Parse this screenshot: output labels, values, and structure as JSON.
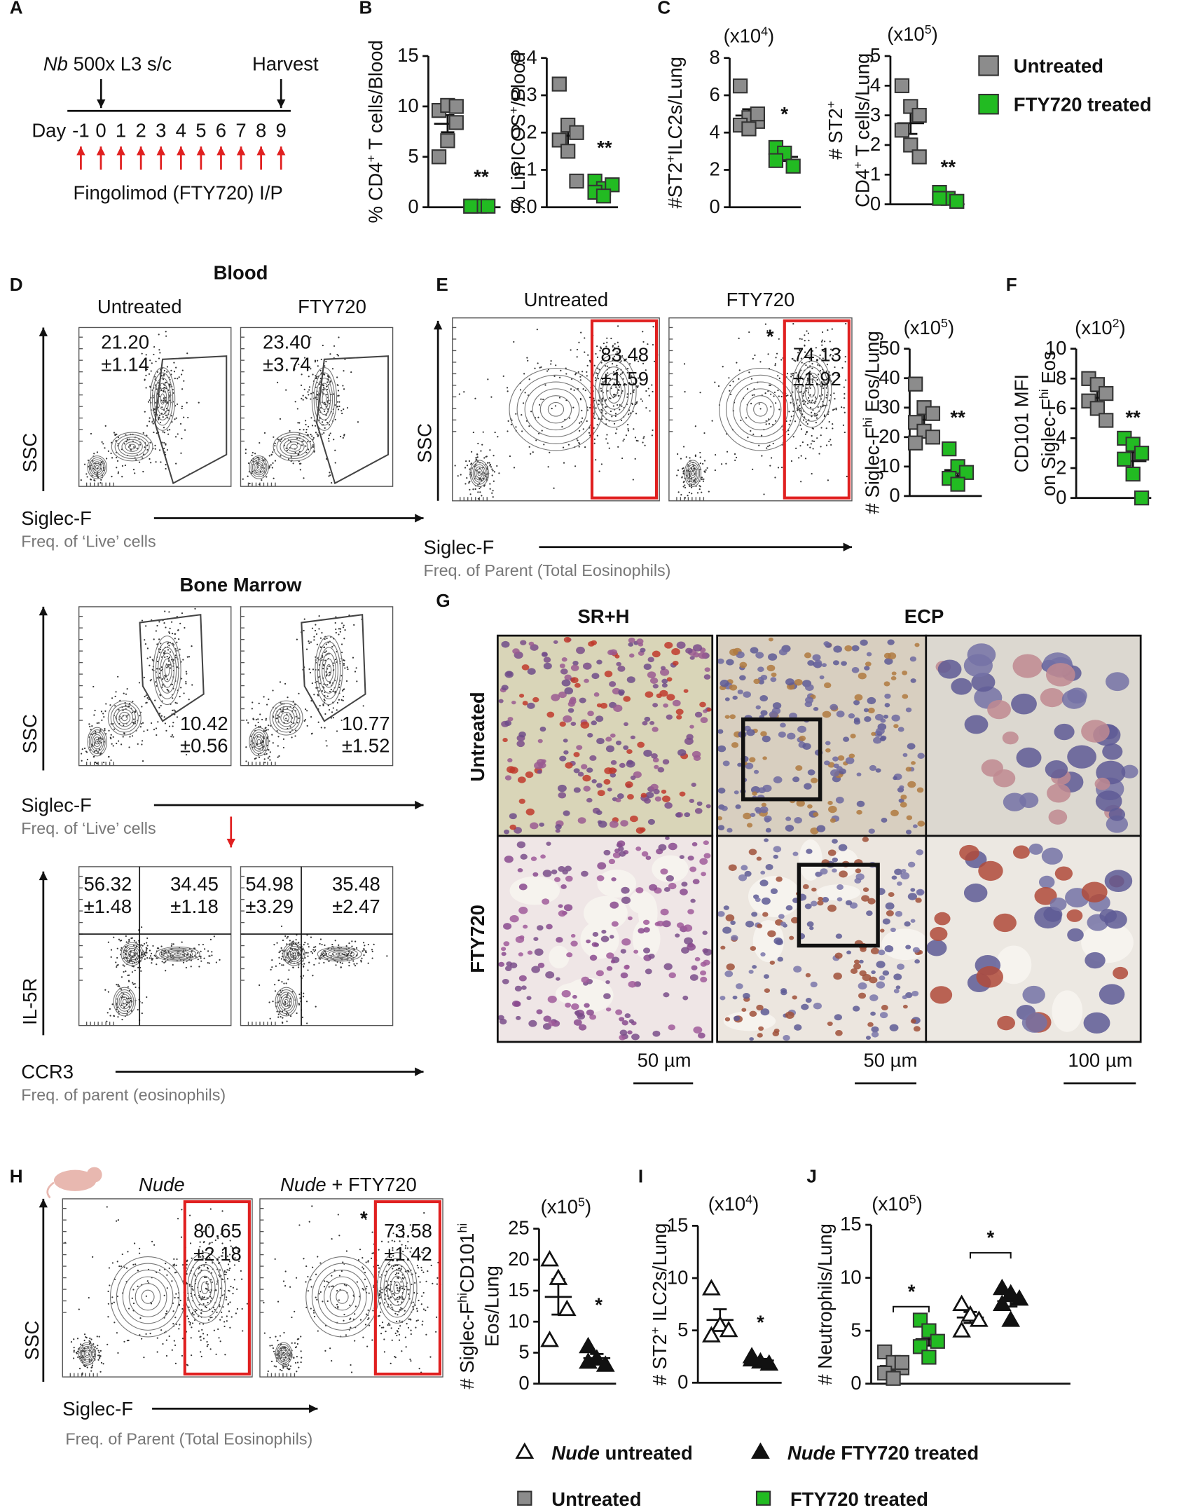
{
  "panel_labels": [
    "A",
    "B",
    "C",
    "D",
    "E",
    "F",
    "G",
    "H",
    "I",
    "J"
  ],
  "panel_a": {
    "organism": "Nb",
    "dose": " 500x L3 s/c",
    "harvest": "Harvest",
    "day_label": "Day",
    "days": [
      -1,
      0,
      1,
      2,
      3,
      4,
      5,
      6,
      7,
      8,
      9
    ],
    "treatment": "Fingolimod (FTY720) I/P"
  },
  "legend_top": {
    "entries": [
      "Untreated",
      "FTY720 treated"
    ],
    "colors": [
      "#8c8c8c",
      "#22bb22"
    ]
  },
  "charts": [
    {
      "ylabel": [
        [
          "% CD4",
          "+",
          " T cells/Blood"
        ]
      ],
      "ylim": [
        0,
        15
      ],
      "yticks": [
        0,
        5,
        10,
        15
      ],
      "significance": [
        "**"
      ],
      "groups": [
        {
          "marker": "square",
          "color": "#8c8c8c",
          "values": [
            9.6,
            10.1,
            8.4,
            5.0,
            6.6,
            10.0
          ]
        },
        {
          "marker": "square",
          "color": "#22bb22",
          "values": [
            0.1,
            0.1,
            0.1,
            0.1
          ]
        }
      ]
    },
    {
      "ylabel": [
        [
          "% Lin",
          "-",
          "ICOS",
          "+",
          "/Blood"
        ]
      ],
      "ylim": [
        0,
        0.4
      ],
      "yticks": [
        {
          "value": 0,
          "label": "0.0"
        },
        0.1,
        0.2,
        0.3,
        0.4
      ],
      "significance": [
        "**"
      ],
      "groups": [
        {
          "marker": "square",
          "color": "#8c8c8c",
          "values": [
            0.33,
            0.22,
            0.2,
            0.18,
            0.15,
            0.07
          ]
        },
        {
          "marker": "square",
          "color": "#22bb22",
          "values": [
            0.07,
            0.05,
            0.06,
            0.04,
            0.03
          ]
        }
      ]
    },
    {
      "multiplier": [
        "(x10",
        "4",
        ")"
      ],
      "ylabel": [
        [
          "#ST2",
          "+",
          "ILC2s/Lung"
        ]
      ],
      "ylim": [
        0,
        8
      ],
      "yticks": [
        0,
        2,
        4,
        6,
        8
      ],
      "significance": [
        "*"
      ],
      "groups": [
        {
          "marker": "square",
          "color": "#8c8c8c",
          "values": [
            6.5,
            4.8,
            4.6,
            4.4,
            4.2,
            5.0
          ]
        },
        {
          "marker": "square",
          "color": "#22bb22",
          "values": [
            3.2,
            2.9,
            2.2,
            2.5
          ]
        }
      ]
    },
    {
      "multiplier": [
        "(x10",
        "5",
        ")"
      ],
      "ylabel": [
        [
          "# ST2",
          "+"
        ],
        [
          "CD4",
          "+",
          " T cells/Lung"
        ]
      ],
      "ylim": [
        0,
        5
      ],
      "yticks": [
        0,
        1,
        2,
        3,
        4,
        5
      ],
      "significance": [
        "**"
      ],
      "groups": [
        {
          "marker": "square",
          "color": "#8c8c8c",
          "values": [
            4.0,
            3.3,
            3.0,
            2.5,
            2.0,
            1.6
          ]
        },
        {
          "marker": "square",
          "color": "#22bb22",
          "values": [
            0.4,
            0.2,
            0.1,
            0.2
          ]
        }
      ]
    },
    {
      "multiplier": [
        "(x10",
        "5",
        ")"
      ],
      "ylabel": [
        [
          "# Siglec-F",
          "hi",
          " Eos/Lung"
        ]
      ],
      "ylim": [
        0,
        50
      ],
      "yticks": [
        0,
        10,
        20,
        30,
        40,
        50
      ],
      "significance": [
        "**"
      ],
      "groups": [
        {
          "marker": "square",
          "color": "#8c8c8c",
          "values": [
            38,
            30,
            28,
            25,
            22,
            20,
            18
          ]
        },
        {
          "marker": "square",
          "color": "#22bb22",
          "values": [
            16,
            10,
            8,
            6,
            4
          ]
        }
      ]
    },
    {
      "multiplier": [
        "(x10",
        "2",
        ")"
      ],
      "ylabel": [
        [
          "CD101 MFI"
        ],
        [
          "on Siglec-F",
          "hi",
          " Eos"
        ]
      ],
      "ylim": [
        0,
        10
      ],
      "yticks": [
        0,
        2,
        4,
        6,
        8,
        10
      ],
      "significance": [
        "**"
      ],
      "groups": [
        {
          "marker": "square",
          "color": "#8c8c8c",
          "values": [
            8.0,
            7.6,
            7.0,
            6.5,
            6.0,
            5.2
          ]
        },
        {
          "marker": "square",
          "color": "#22bb22",
          "values": [
            4.0,
            3.6,
            3.0,
            2.6,
            1.6,
            0
          ]
        }
      ]
    },
    {
      "multiplier": [
        "(x10",
        "5",
        ")"
      ],
      "ylabel": [
        [
          "# Siglec-F",
          "hi",
          "CD101",
          "hi"
        ],
        [
          "Eos/Lung"
        ]
      ],
      "ylim": [
        0,
        25
      ],
      "yticks": [
        0,
        5,
        10,
        15,
        20,
        25
      ],
      "significance": [
        "*"
      ],
      "groups": [
        {
          "marker": "triangle-open",
          "color": "#111111",
          "values": [
            20,
            17,
            12,
            7
          ]
        },
        {
          "marker": "triangle-filled",
          "color": "#111111",
          "values": [
            6,
            4,
            3,
            3.5
          ]
        }
      ]
    },
    {
      "multiplier": [
        "(x10",
        "4",
        ")"
      ],
      "ylabel": [
        [
          "# ST2",
          "+",
          " ILC2s/Lung"
        ]
      ],
      "ylim": [
        0,
        15
      ],
      "yticks": [
        0,
        5,
        10,
        15
      ],
      "significance": [
        "*"
      ],
      "groups": [
        {
          "marker": "triangle-open",
          "color": "#111111",
          "values": [
            9,
            5.5,
            5,
            4.5
          ]
        },
        {
          "marker": "triangle-filled",
          "color": "#111111",
          "values": [
            2.5,
            2,
            1.8,
            2.2
          ]
        }
      ]
    },
    {
      "multiplier": [
        "(x10",
        "5",
        ")"
      ],
      "ylabel": [
        [
          "# Neutrophils/Lung"
        ]
      ],
      "ylim": [
        0,
        15
      ],
      "yticks": [
        0,
        5,
        10,
        15
      ],
      "significance": [
        "*",
        "*"
      ],
      "groups": [
        {
          "marker": "square",
          "color": "#8c8c8c",
          "values": [
            3,
            2,
            1.5,
            1,
            0.5,
            2
          ]
        },
        {
          "marker": "square",
          "color": "#22bb22",
          "values": [
            6,
            5,
            4,
            3.5,
            2.5
          ]
        },
        {
          "marker": "triangle-open",
          "color": "#111111",
          "values": [
            7.5,
            6.5,
            6,
            5
          ]
        },
        {
          "marker": "triangle-filled",
          "color": "#111111",
          "values": [
            9,
            8.5,
            8,
            7.5,
            6
          ]
        }
      ]
    }
  ],
  "panel_d": {
    "blood_title": "Blood",
    "column_titles": [
      "Untreated",
      "FTY720"
    ],
    "blood_gates": [
      [
        "21.20",
        "±1.14"
      ],
      [
        "23.40",
        "±3.74"
      ]
    ],
    "bm_title": "Bone Marrow",
    "bm_gates": [
      [
        "10.42",
        "±0.56"
      ],
      [
        "10.77",
        "±1.52"
      ]
    ],
    "quadrants": [
      [
        [
          "56.32",
          "±1.48"
        ],
        [
          "34.45",
          "±1.18"
        ]
      ],
      [
        [
          "54.98",
          "±3.29"
        ],
        [
          "35.48",
          "±2.47"
        ]
      ]
    ],
    "ssc": "SSC",
    "siglec": "Siglec-F",
    "live": "Freq. of ‘Live’ cells",
    "il5r": "IL-5R",
    "ccr3": "CCR3",
    "parent": "Freq. of parent (eosinophils)"
  },
  "panel_e": {
    "column_titles": [
      "Untreated",
      "FTY720"
    ],
    "gates": [
      [
        "83.48",
        "±1.59"
      ],
      [
        "74.13",
        "±1.92"
      ]
    ],
    "significance": "*",
    "ssc": "SSC",
    "siglec": "Siglec-F",
    "parent": "Freq. of Parent (Total Eosinophils)"
  },
  "panel_g": {
    "stains": [
      "SR+H",
      "ECP"
    ],
    "rows": [
      "Untreated",
      "FTY720"
    ],
    "scale_bars": [
      "50 µm",
      "50 µm",
      "100 µm"
    ]
  },
  "panel_h": {
    "strain": "Nude",
    "column_suffix": " + FTY720",
    "gates": [
      [
        "80.65",
        "±2.18"
      ],
      [
        "73.58",
        "±1.42"
      ]
    ],
    "significance": "*",
    "ssc": "SSC",
    "siglec": "Siglec-F",
    "parent": "Freq. of Parent (Total Eosinophils)"
  },
  "legend_bottom": {
    "entries": [
      {
        "strain": "Nude",
        "text": " untreated"
      },
      {
        "strain": "Nude",
        "text": " FTY720 treated"
      },
      {
        "text": "Untreated"
      },
      {
        "text": "FTY720 treated"
      }
    ],
    "markers": [
      "triangle-open",
      "triangle-filled",
      "square",
      "square"
    ],
    "colors": [
      "#111111",
      "#111111",
      "#8c8c8c",
      "#22bb22"
    ]
  }
}
